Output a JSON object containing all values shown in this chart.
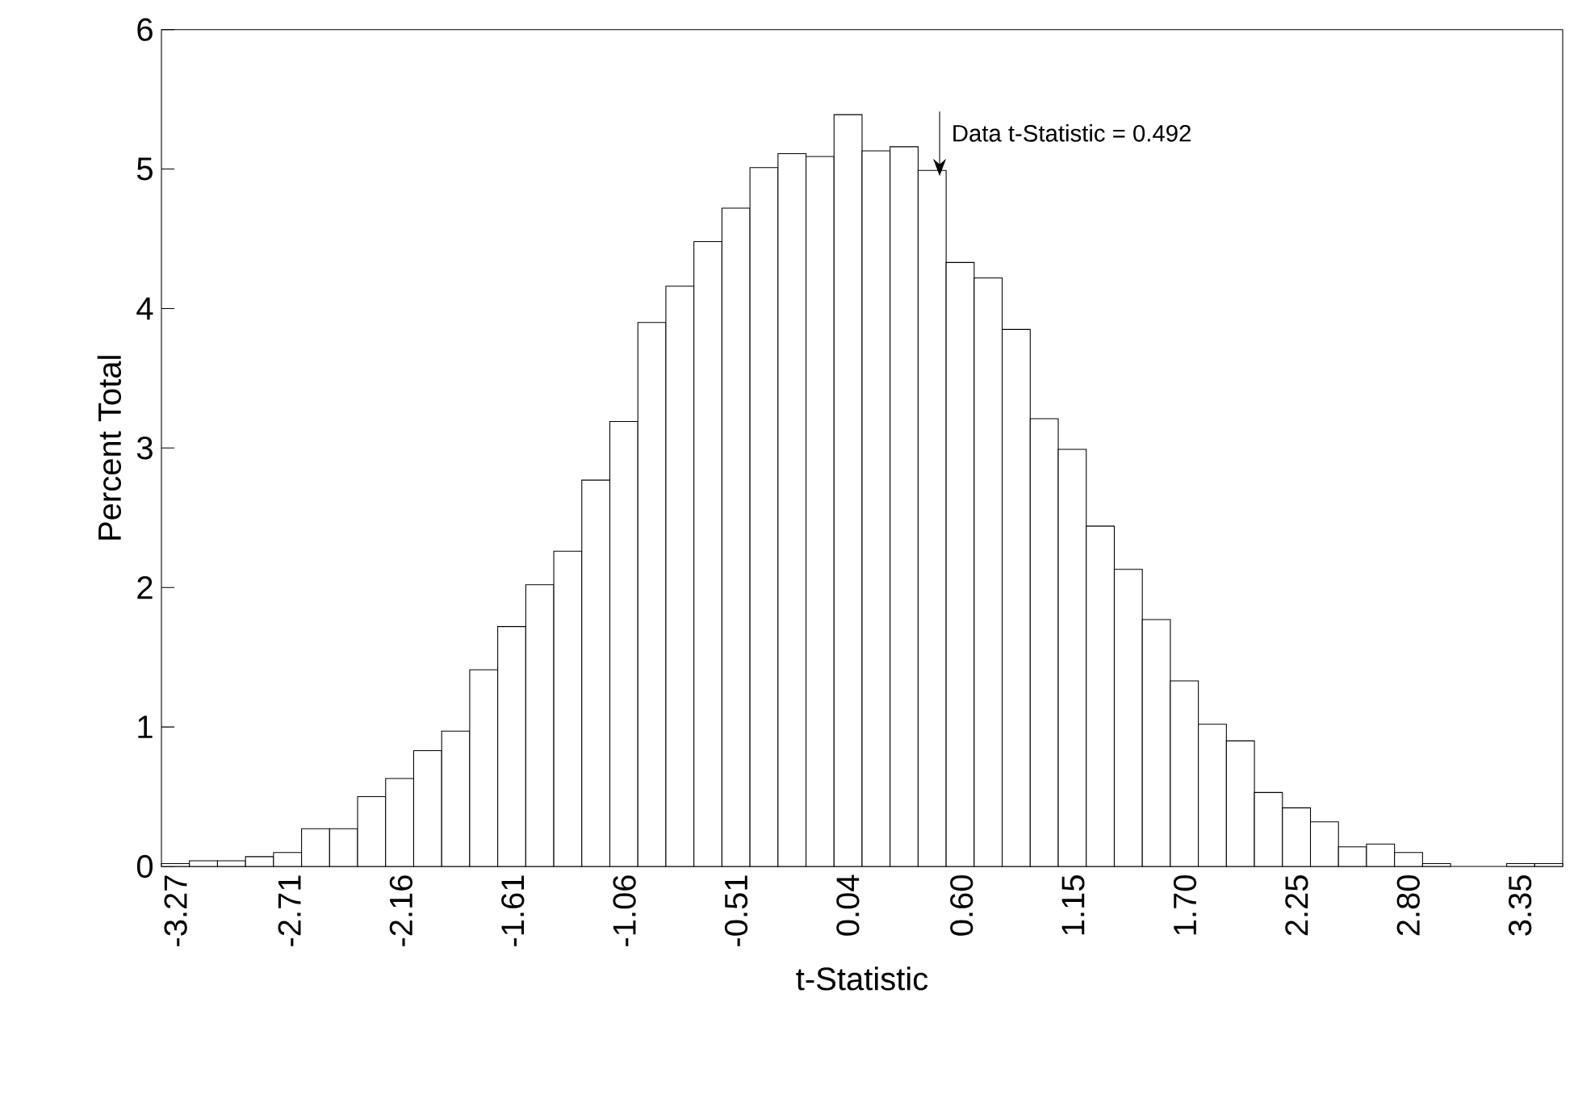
{
  "chart_data": {
    "type": "histogram",
    "xlabel": "t-Statistic",
    "ylabel": "Percent Total",
    "color": "#ffffff",
    "bins": [
      -3.34,
      -3.202,
      -3.064,
      -2.926,
      -2.788,
      -2.65,
      -2.512,
      -2.374,
      -2.236,
      -2.098,
      -1.96,
      -1.822,
      -1.684,
      -1.546,
      -1.408,
      -1.27,
      -1.132,
      -0.994,
      -0.856,
      -0.718,
      -0.58,
      -0.442,
      -0.304,
      -0.166,
      -0.028,
      0.11,
      0.248,
      0.386,
      0.524,
      0.662,
      0.8,
      0.938,
      1.076,
      1.214,
      1.352,
      1.49,
      1.628,
      1.766,
      1.904,
      2.042,
      2.18,
      2.318,
      2.456,
      2.594,
      2.732,
      2.87,
      3.008,
      3.146,
      3.284,
      3.422,
      3.56
    ],
    "values": [
      0.02,
      0.04,
      0.04,
      0.07,
      0.1,
      0.27,
      0.27,
      0.5,
      0.63,
      0.83,
      0.97,
      1.41,
      1.72,
      2.02,
      2.26,
      2.77,
      3.19,
      3.9,
      4.16,
      4.48,
      4.72,
      5.01,
      5.11,
      5.09,
      5.39,
      5.13,
      5.16,
      4.99,
      4.33,
      4.22,
      3.85,
      3.21,
      2.99,
      2.44,
      2.13,
      1.77,
      1.33,
      1.02,
      0.9,
      0.53,
      0.42,
      0.32,
      0.14,
      0.16,
      0.1,
      0.02,
      0,
      0,
      0.02,
      0.02
    ],
    "xlim": [
      -3.34,
      3.56
    ],
    "ylim": [
      0,
      6
    ],
    "xticks": [
      -3.27,
      -2.71,
      -2.16,
      -1.61,
      -1.06,
      -0.51,
      0.04,
      {
        "value": 0.6,
        "label": "0.60"
      },
      1.15,
      {
        "value": 1.7,
        "label": "1.70"
      },
      2.25,
      {
        "value": 2.8,
        "label": "2.80"
      },
      3.35
    ],
    "yticks": [
      0,
      1,
      2,
      3,
      4,
      5,
      6
    ],
    "annotations": [
      {
        "text": "Data  t-Statistic = 0.492",
        "x": 0.492,
        "y": 4.95
      }
    ]
  }
}
